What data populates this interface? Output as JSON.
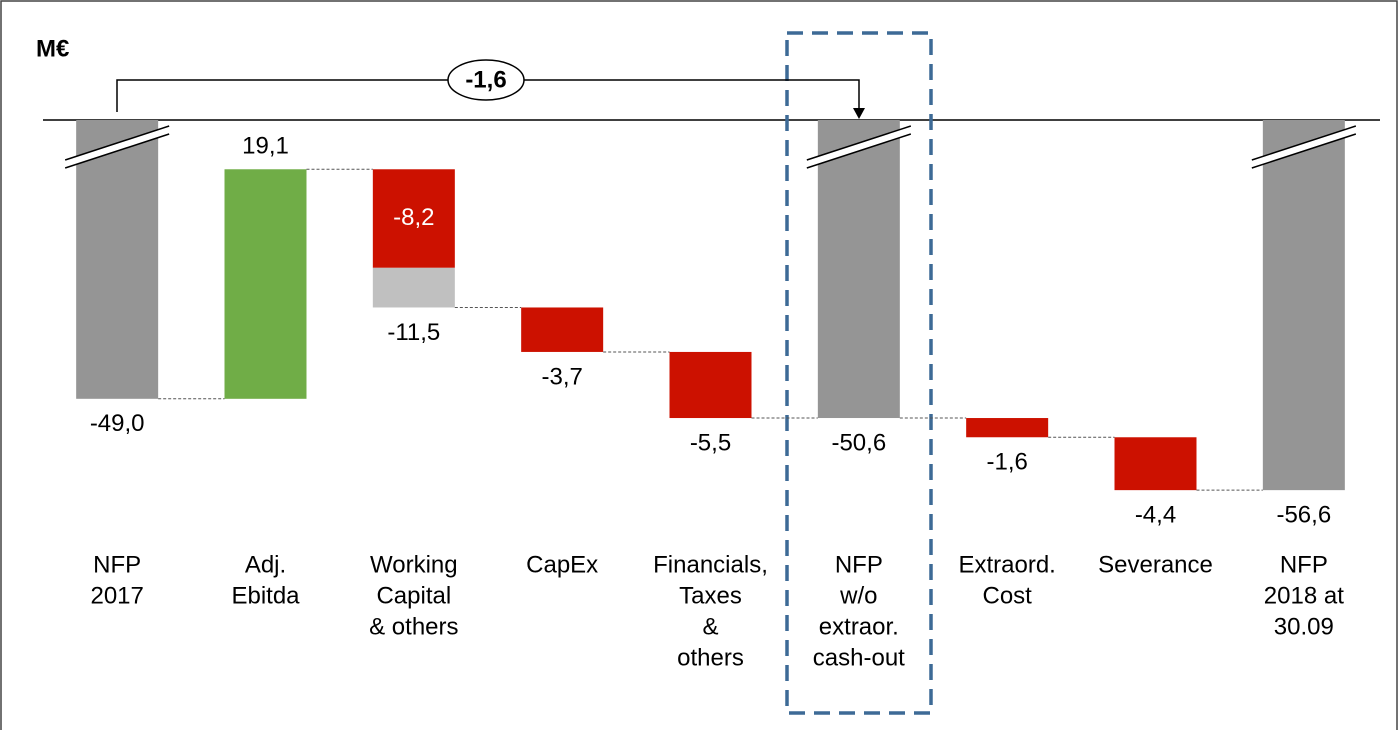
{
  "chart_data": {
    "type": "waterfall",
    "title": "M€",
    "categories": [
      [
        "NFP",
        "2017"
      ],
      [
        "Adj.",
        "Ebitda"
      ],
      [
        "Working",
        "Capital",
        "& others"
      ],
      [
        "CapEx"
      ],
      [
        "Financials,",
        "Taxes",
        "&",
        "others"
      ],
      [
        "NFP",
        "w/o",
        "extraor.",
        "cash-out"
      ],
      [
        "Extraord.",
        "Cost"
      ],
      [
        "Severance"
      ],
      [
        "NFP",
        "2018 at",
        "30.09"
      ]
    ],
    "measure": [
      "absolute",
      "relative",
      "relative",
      "relative",
      "relative",
      "absolute",
      "relative",
      "relative",
      "absolute"
    ],
    "values": [
      -49.0,
      19.1,
      -11.5,
      -3.7,
      -5.5,
      -50.6,
      -1.6,
      -4.4,
      -56.6
    ],
    "value_labels": [
      "-49,0",
      "19,1",
      "-11,5",
      "-3,7",
      "-5,5",
      "-50,6",
      "-1,6",
      "-4,4",
      "-56,6"
    ],
    "colors": {
      "absolute": "#959595",
      "increase": "#70ad47",
      "decrease": "#cc1100"
    },
    "segments": [
      null,
      null,
      [
        {
          "value": -8.2,
          "label": "-8,2",
          "color": "#cc1100"
        },
        {
          "value": -3.3,
          "color": "#c0c0c0"
        }
      ],
      null,
      null,
      null,
      null,
      null,
      null
    ],
    "annotation": {
      "value": -1.6,
      "label": "-1,6"
    },
    "ylim": [
      -60,
      -25.8
    ]
  }
}
